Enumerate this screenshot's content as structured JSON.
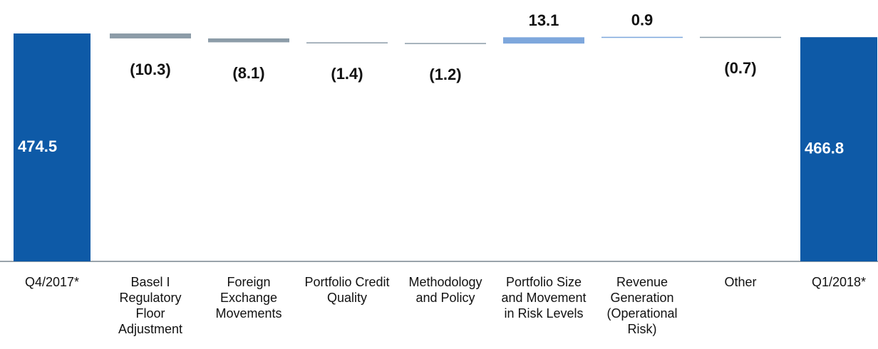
{
  "chart_data": {
    "type": "waterfall",
    "categories": [
      "Q4/2017*",
      "Basel I Regulatory Floor Adjustment",
      "Foreign Exchange Movements",
      "Portfolio Credit Quality",
      "Methodology and Policy",
      "Portfolio Size and Movement in Risk Levels",
      "Revenue Generation (Operational Risk)",
      "Other",
      "Q1/2018*"
    ],
    "values": [
      474.5,
      -10.3,
      -8.1,
      -1.4,
      -1.2,
      13.1,
      0.9,
      -0.7,
      466.8
    ],
    "value_labels": [
      "474.5",
      "(10.3)",
      "(8.1)",
      "(1.4)",
      "(1.2)",
      "13.1",
      "0.9",
      "(0.7)",
      "466.8"
    ],
    "measures": [
      "total",
      "relative",
      "relative",
      "relative",
      "relative",
      "relative",
      "relative",
      "relative",
      "total"
    ],
    "colors": {
      "total": "#0e5aa7",
      "decrease": "#8c9ca8",
      "increase": "#7ea7dc"
    }
  }
}
